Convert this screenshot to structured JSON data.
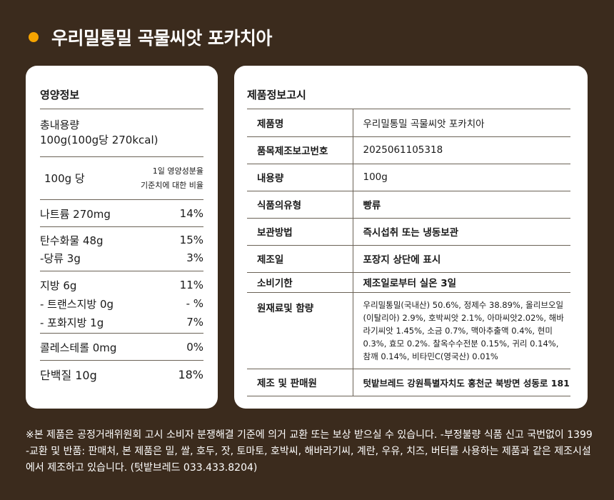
{
  "title": "우리밀통밀 곡물씨앗 포카치아",
  "nutrition": {
    "heading": "영양정보",
    "total_label": "총내용량",
    "total_value": "100g(100g당 270kcal)",
    "per_label": "100g 당",
    "dv_label_1": "1일 영양성분율",
    "dv_label_2": "기준치에 대한 비율",
    "rows": [
      {
        "name": "나트륨 270mg",
        "pct": "14%"
      },
      {
        "name": "탄수화물 48g",
        "pct": "15%"
      },
      {
        "name": "-당류  3g",
        "pct": "3%"
      },
      {
        "name": "지방  6g",
        "pct": "11%"
      },
      {
        "name": "- 트랜스지방 0g",
        "pct": "- %"
      },
      {
        "name": "- 포화지방 1g",
        "pct": "7%"
      },
      {
        "name": "콜레스테롤  0mg",
        "pct": "0%"
      },
      {
        "name": "단백질 10g",
        "pct": "18%"
      }
    ]
  },
  "product": {
    "heading": "제품정보고시",
    "rows": [
      {
        "label": "제품명",
        "value": "우리밀통밀 곡물씨앗 포카치아"
      },
      {
        "label": "품목제조보고번호",
        "value": "2025061105318"
      },
      {
        "label": "내용량",
        "value": "100g"
      },
      {
        "label": "식품의유형",
        "value": "빵류"
      },
      {
        "label": "보관방법",
        "value": "즉시섭취 또는 냉동보관"
      },
      {
        "label": "제조일",
        "value": "포장지 상단에 표시"
      },
      {
        "label": "소비기한",
        "value": "제조일로부터 실온 3일"
      },
      {
        "label": "원재료및 함량",
        "value": "우리밀통밀(국내산) 50.6%, 정제수 38.89%, 올리브오일(이탈리아) 2.9%, 호박씨앗 2.1%, 아마씨앗2.02%, 해바라기씨앗 1.45%, 소금 0.7%, 맥아추출액 0.4%, 현미 0.3%, 효모 0.2%. 찰옥수수전분 0.15%, 귀리 0.14%, 참깨 0.14%,  비타민C(영국산) 0.01%"
      },
      {
        "label": "제조 및 판매원",
        "value": "텃밭브레드  강원특별자치도 홍천군 북방면 성동로 181"
      }
    ]
  },
  "notice": "※본 제품은 공정거래위원회 고시 소비자 분쟁해결 기준에 의거 교환 또는 보상 받으실 수 있습니다. -부정불량 식품 신고 국번없이 1399 -교환 및 반품: 판매처, 본 제품은 밀, 쌀, 호두, 잣, 토마토, 호박씨, 해바라기씨, 계란, 우유, 치즈, 버터를 사용하는 제품과 같은 제조시설에서 제조하고 있습니다. (텃밭브레드 033.433.8204)",
  "colors": {
    "background": "#3b2b1d",
    "accent": "#f5a300"
  }
}
